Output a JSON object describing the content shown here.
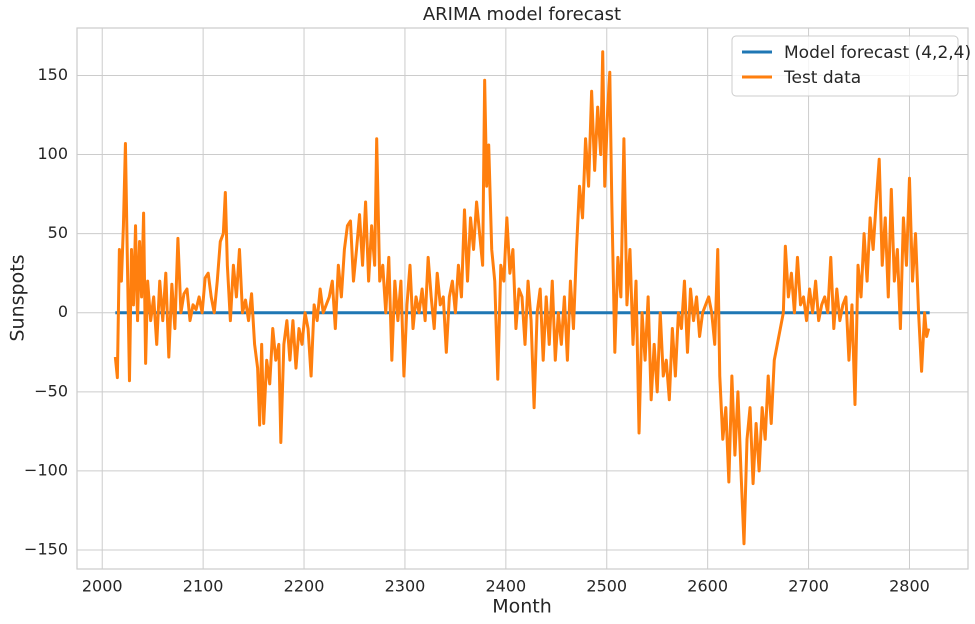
{
  "chart_data": {
    "type": "line",
    "title": "ARIMA model forecast",
    "xlabel": "Month",
    "ylabel": "Sunspots",
    "xlim": [
      1975,
      2858
    ],
    "ylim": [
      -162,
      180
    ],
    "xticks": [
      2000,
      2100,
      2200,
      2300,
      2400,
      2500,
      2600,
      2700,
      2800
    ],
    "yticks": [
      {
        "value": -150,
        "label": "−150"
      },
      {
        "value": -100,
        "label": "−100"
      },
      {
        "value": -50,
        "label": "−50"
      },
      0,
      50,
      100,
      150
    ],
    "grid": true,
    "legend": "upper right",
    "series": [
      {
        "name": "Model forecast (4,2,4)",
        "color": "#1f77b4",
        "x": [
          2013,
          2820
        ],
        "values": [
          0,
          0
        ]
      },
      {
        "name": "Test data",
        "color": "#ff7f0e",
        "x": [
          2013,
          2015,
          2017,
          2019,
          2021,
          2023,
          2025,
          2027,
          2029,
          2031,
          2033,
          2035,
          2037,
          2039,
          2041,
          2043,
          2045,
          2048,
          2051,
          2054,
          2057,
          2060,
          2063,
          2066,
          2069,
          2072,
          2075,
          2078,
          2081,
          2084,
          2087,
          2090,
          2093,
          2096,
          2099,
          2102,
          2105,
          2108,
          2111,
          2114,
          2117,
          2120,
          2122,
          2124,
          2127,
          2130,
          2133,
          2136,
          2139,
          2142,
          2145,
          2148,
          2151,
          2154,
          2156,
          2158,
          2160,
          2163,
          2166,
          2169,
          2172,
          2175,
          2177,
          2180,
          2183,
          2186,
          2189,
          2192,
          2195,
          2198,
          2201,
          2204,
          2207,
          2210,
          2213,
          2216,
          2219,
          2222,
          2225,
          2228,
          2231,
          2234,
          2237,
          2240,
          2243,
          2246,
          2249,
          2252,
          2255,
          2258,
          2261,
          2264,
          2267,
          2270,
          2272,
          2275,
          2278,
          2281,
          2284,
          2287,
          2290,
          2293,
          2296,
          2299,
          2302,
          2305,
          2308,
          2311,
          2314,
          2317,
          2320,
          2323,
          2326,
          2329,
          2332,
          2335,
          2338,
          2341,
          2344,
          2347,
          2350,
          2353,
          2356,
          2359,
          2362,
          2365,
          2368,
          2371,
          2374,
          2377,
          2379,
          2381,
          2383,
          2386,
          2389,
          2392,
          2395,
          2398,
          2401,
          2404,
          2407,
          2410,
          2413,
          2416,
          2419,
          2422,
          2425,
          2428,
          2431,
          2434,
          2437,
          2440,
          2443,
          2446,
          2449,
          2452,
          2455,
          2458,
          2461,
          2464,
          2467,
          2470,
          2473,
          2476,
          2479,
          2482,
          2485,
          2488,
          2491,
          2494,
          2496,
          2498,
          2501,
          2503,
          2505,
          2508,
          2511,
          2514,
          2517,
          2520,
          2523,
          2526,
          2529,
          2532,
          2535,
          2538,
          2541,
          2544,
          2547,
          2550,
          2553,
          2556,
          2559,
          2562,
          2565,
          2568,
          2571,
          2574,
          2577,
          2580,
          2583,
          2586,
          2589,
          2592,
          2595,
          2598,
          2601,
          2604,
          2607,
          2610,
          2612,
          2615,
          2618,
          2621,
          2624,
          2627,
          2630,
          2633,
          2636,
          2639,
          2642,
          2645,
          2648,
          2651,
          2654,
          2657,
          2660,
          2663,
          2666,
          2669,
          2672,
          2675,
          2677,
          2680,
          2683,
          2686,
          2689,
          2692,
          2695,
          2698,
          2701,
          2704,
          2707,
          2710,
          2713,
          2716,
          2719,
          2722,
          2725,
          2728,
          2731,
          2734,
          2737,
          2740,
          2743,
          2746,
          2749,
          2752,
          2755,
          2758,
          2761,
          2764,
          2767,
          2770,
          2773,
          2776,
          2779,
          2782,
          2785,
          2788,
          2791,
          2794,
          2797,
          2800,
          2803,
          2806,
          2809,
          2812,
          2815,
          2817,
          2819
        ],
        "values": [
          -28,
          -41,
          40,
          20,
          55,
          107,
          30,
          -43,
          40,
          5,
          55,
          -5,
          45,
          10,
          63,
          -32,
          20,
          -5,
          10,
          -20,
          20,
          -5,
          25,
          -28,
          18,
          -10,
          47,
          0,
          12,
          15,
          -5,
          5,
          2,
          10,
          0,
          22,
          25,
          10,
          0,
          20,
          45,
          50,
          76,
          30,
          -5,
          30,
          10,
          40,
          0,
          8,
          -5,
          12,
          -20,
          -35,
          -71,
          -20,
          -70,
          -30,
          -45,
          -10,
          -30,
          -20,
          -82,
          -20,
          -5,
          -30,
          -5,
          -35,
          -10,
          -20,
          0,
          -10,
          -40,
          5,
          -5,
          15,
          0,
          5,
          10,
          20,
          -10,
          30,
          10,
          40,
          55,
          58,
          20,
          40,
          62,
          30,
          70,
          20,
          55,
          30,
          110,
          20,
          30,
          0,
          35,
          -30,
          20,
          -5,
          20,
          -40,
          5,
          30,
          -10,
          10,
          0,
          15,
          -5,
          35,
          10,
          -10,
          25,
          5,
          10,
          -25,
          10,
          20,
          0,
          30,
          10,
          65,
          20,
          60,
          40,
          70,
          50,
          30,
          147,
          80,
          106,
          40,
          20,
          -42,
          30,
          20,
          60,
          25,
          40,
          -10,
          15,
          10,
          -20,
          20,
          -5,
          -60,
          0,
          15,
          -30,
          10,
          -20,
          20,
          -30,
          0,
          -20,
          10,
          -30,
          20,
          -10,
          40,
          80,
          60,
          110,
          80,
          140,
          90,
          130,
          100,
          165,
          80,
          130,
          152,
          70,
          -25,
          35,
          10,
          110,
          5,
          40,
          -20,
          20,
          -76,
          0,
          -30,
          10,
          -55,
          -20,
          -50,
          0,
          -40,
          -30,
          -55,
          -10,
          -40,
          0,
          -10,
          20,
          -25,
          15,
          -5,
          10,
          -15,
          0,
          5,
          10,
          0,
          -20,
          40,
          -40,
          -80,
          -60,
          -107,
          -40,
          -90,
          -50,
          -100,
          -146,
          -80,
          -60,
          -108,
          -70,
          -100,
          -60,
          -80,
          -40,
          -70,
          -30,
          -20,
          -10,
          0,
          42,
          10,
          25,
          0,
          35,
          5,
          10,
          -5,
          15,
          0,
          20,
          -5,
          5,
          10,
          0,
          35,
          -10,
          15,
          -5,
          5,
          10,
          -30,
          5,
          -58,
          30,
          10,
          50,
          20,
          60,
          40,
          70,
          97,
          30,
          60,
          10,
          78,
          20,
          40,
          -10,
          60,
          30,
          85,
          20,
          50,
          0,
          -37,
          0,
          -15,
          -10
        ]
      }
    ]
  }
}
